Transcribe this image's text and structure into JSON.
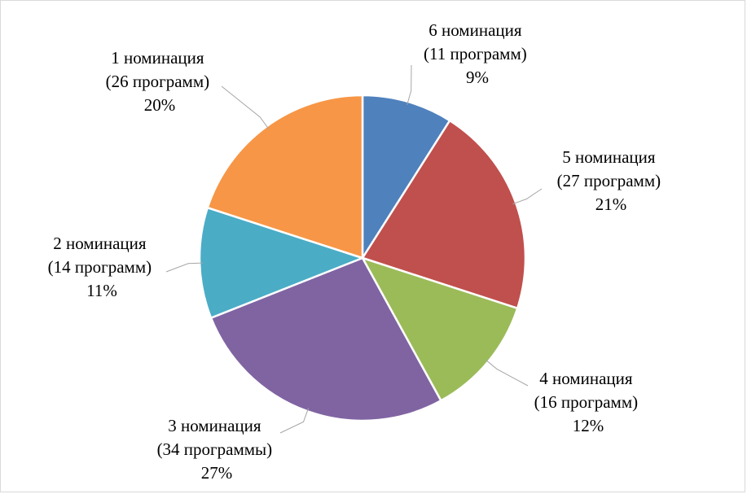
{
  "chart_data": {
    "type": "pie",
    "title": "",
    "legend": "none",
    "slices": [
      {
        "name": "6 номинация",
        "count_label": "(11 программ)",
        "percent": 9,
        "percent_label": "9%",
        "color": "#4F81BD"
      },
      {
        "name": "5 номинация",
        "count_label": "(27 программ)",
        "percent": 21,
        "percent_label": "21%",
        "color": "#C0504D"
      },
      {
        "name": "4 номинация",
        "count_label": "(16 программ)",
        "percent": 12,
        "percent_label": "12%",
        "color": "#9BBB59"
      },
      {
        "name": "3 номинация",
        "count_label": "(34 программы)",
        "percent": 27,
        "percent_label": "27%",
        "color": "#8064A2"
      },
      {
        "name": "2 номинация",
        "count_label": "(14 программ)",
        "percent": 11,
        "percent_label": "11%",
        "color": "#4BACC6"
      },
      {
        "name": "1 номинация",
        "count_label": "(26 программ)",
        "percent": 20,
        "percent_label": "20%",
        "color": "#F79646"
      }
    ]
  }
}
